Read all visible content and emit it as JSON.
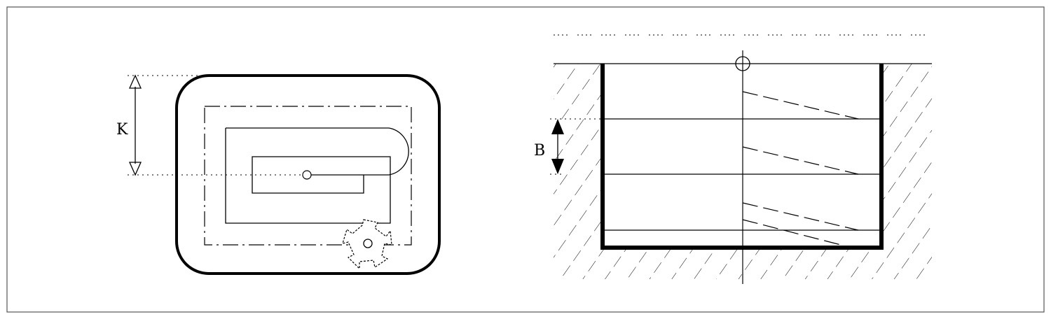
{
  "labels": {
    "left_dimension": "K",
    "right_dimension": "B"
  },
  "colors": {
    "ink": "#000000",
    "background": "#ffffff",
    "frame": "#555555"
  }
}
